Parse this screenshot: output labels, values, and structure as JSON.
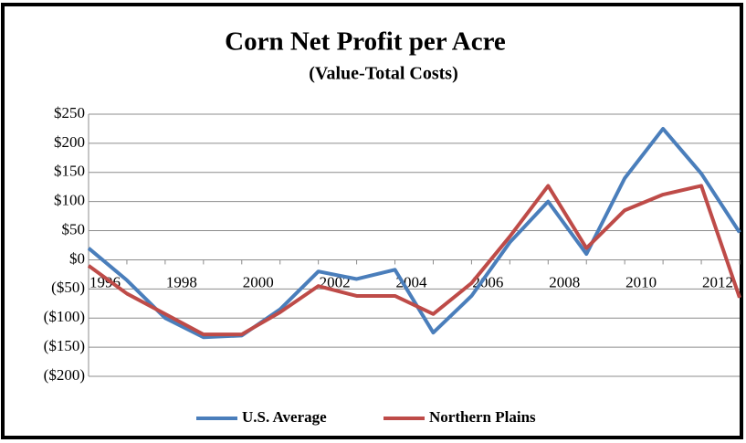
{
  "chart_data": {
    "type": "line",
    "title": "Corn Net Profit per Acre",
    "subtitle": "(Value-Total Costs)",
    "categories": [
      "1996",
      null,
      "1998",
      null,
      "2000",
      null,
      "2002",
      null,
      "2004",
      null,
      "2006",
      null,
      "2008",
      null,
      "2010",
      null,
      "2012",
      null
    ],
    "series": [
      {
        "name": "U.S. Average",
        "color": "#4a7ebb",
        "values": [
          20,
          -35,
          -100,
          -133,
          -130,
          -85,
          -20,
          -33,
          -17,
          -125,
          -62,
          30,
          100,
          10,
          140,
          225,
          148,
          47
        ]
      },
      {
        "name": "Northern Plains",
        "color": "#be4b48",
        "values": [
          -10,
          -58,
          -93,
          -128,
          -128,
          -90,
          -45,
          -62,
          -62,
          -93,
          -40,
          40,
          127,
          20,
          85,
          112,
          127,
          -65
        ]
      }
    ],
    "ylim": [
      -200,
      250
    ],
    "yticks": [
      {
        "value": -200,
        "label": "($200)"
      },
      {
        "value": -150,
        "label": "($150)"
      },
      {
        "value": -100,
        "label": "($100)"
      },
      {
        "value": -50,
        "label": "($50)"
      },
      {
        "value": 0,
        "label": "$0"
      },
      {
        "value": 50,
        "label": "$50"
      },
      {
        "value": 100,
        "label": "$100"
      },
      {
        "value": 150,
        "label": "$150"
      },
      {
        "value": 200,
        "label": "$200"
      },
      {
        "value": 250,
        "label": "$250"
      }
    ],
    "grid": true,
    "legend": "bottom"
  }
}
